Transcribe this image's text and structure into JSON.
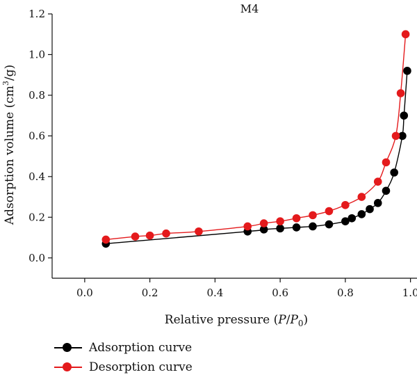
{
  "chart_data": {
    "type": "line",
    "title": "M4",
    "xlabel_parts": {
      "prefix": "Relative pressure (",
      "italic": "P",
      "slash": "/",
      "italic2": "P",
      "sub": "0",
      "suffix": ")"
    },
    "ylabel_parts": {
      "prefix": "Adsorption volume (cm",
      "sup": "3",
      "suffix": "/g)"
    },
    "xlim": [
      -0.1,
      1.02
    ],
    "ylim": [
      -0.1,
      1.2
    ],
    "xticks": [
      "0.0",
      "0.2",
      "0.4",
      "0.6",
      "0.8",
      "1.0"
    ],
    "xtick_values": [
      0.0,
      0.2,
      0.4,
      0.6,
      0.8,
      1.0
    ],
    "yticks": [
      "0.0",
      "0.2",
      "0.4",
      "0.6",
      "0.8",
      "1.0",
      "1.2"
    ],
    "ytick_values": [
      0.0,
      0.2,
      0.4,
      0.6,
      0.8,
      1.0,
      1.2
    ],
    "grid": false,
    "legend_position": "bottom-left",
    "series": [
      {
        "name": "Adsorption curve",
        "color": "#000000",
        "x": [
          0.065,
          0.5,
          0.55,
          0.6,
          0.65,
          0.7,
          0.75,
          0.8,
          0.82,
          0.85,
          0.875,
          0.9,
          0.925,
          0.95,
          0.975,
          0.98,
          0.99
        ],
        "y": [
          0.07,
          0.13,
          0.14,
          0.145,
          0.15,
          0.155,
          0.165,
          0.18,
          0.195,
          0.215,
          0.24,
          0.27,
          0.33,
          0.42,
          0.6,
          0.7,
          0.92
        ]
      },
      {
        "name": "Desorption curve",
        "color": "#e41a1c",
        "x": [
          0.065,
          0.155,
          0.2,
          0.25,
          0.35,
          0.5,
          0.55,
          0.6,
          0.65,
          0.7,
          0.75,
          0.8,
          0.85,
          0.9,
          0.925,
          0.955,
          0.97,
          0.985
        ],
        "y": [
          0.09,
          0.105,
          0.11,
          0.12,
          0.13,
          0.155,
          0.17,
          0.18,
          0.195,
          0.21,
          0.23,
          0.26,
          0.3,
          0.375,
          0.47,
          0.6,
          0.81,
          1.1
        ]
      }
    ]
  }
}
